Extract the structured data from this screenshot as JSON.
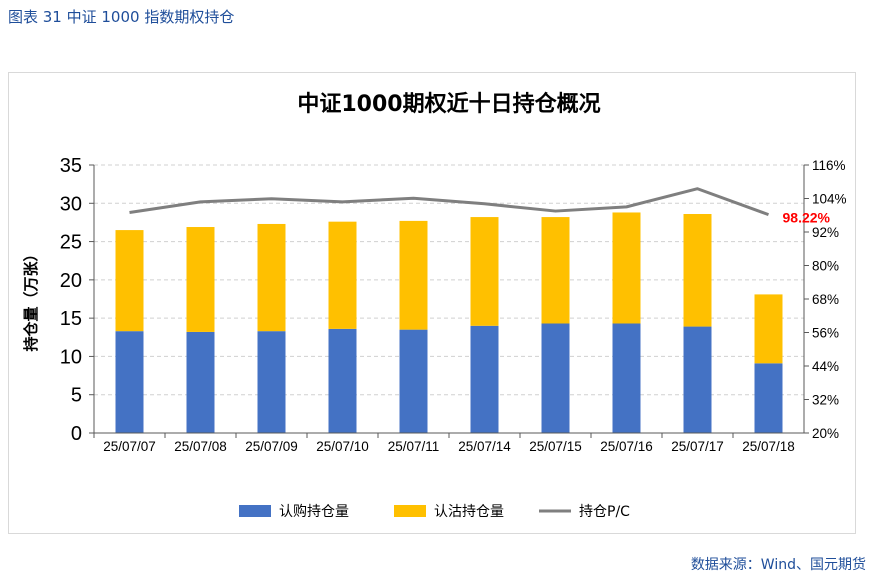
{
  "figure_caption": "图表 31  中证 1000 指数期权持仓",
  "source": "数据来源：Wind、国元期货",
  "chart_data": {
    "type": "bar",
    "stacked": true,
    "title": "中证1000期权近十日持仓概况",
    "ylabel": "持仓量（万张）",
    "ylabel_right": "",
    "categories": [
      "25/07/07",
      "25/07/08",
      "25/07/09",
      "25/07/10",
      "25/07/11",
      "25/07/14",
      "25/07/15",
      "25/07/16",
      "25/07/17",
      "25/07/18"
    ],
    "ylim": [
      0,
      35
    ],
    "yticks": [
      0,
      5,
      10,
      15,
      20,
      25,
      30,
      35
    ],
    "y2lim": [
      20,
      116
    ],
    "y2ticks": [
      "20%",
      "32%",
      "44%",
      "56%",
      "68%",
      "80%",
      "92%",
      "104%",
      "116%"
    ],
    "grid": "horizontal dashed",
    "legend_position": "bottom",
    "series": [
      {
        "name": "认购持仓量",
        "kind": "bar",
        "color": "#4472c4",
        "values": [
          13.3,
          13.2,
          13.3,
          13.6,
          13.5,
          14.0,
          14.3,
          14.3,
          13.9,
          9.1
        ]
      },
      {
        "name": "认沽持仓量",
        "kind": "bar",
        "color": "#ffc000",
        "values": [
          13.2,
          13.7,
          14.0,
          14.0,
          14.2,
          14.2,
          13.9,
          14.5,
          14.7,
          9.0
        ]
      },
      {
        "name": "持仓P/C",
        "kind": "line",
        "axis": "right",
        "color": "#7f7f7f",
        "values": [
          99.0,
          102.8,
          103.9,
          102.8,
          104.1,
          102.1,
          99.5,
          101.0,
          107.5,
          98.22
        ]
      }
    ],
    "annotations": [
      {
        "text": "98.22%",
        "series": "持仓P/C",
        "index": 9,
        "color": "#ff0000"
      }
    ]
  }
}
